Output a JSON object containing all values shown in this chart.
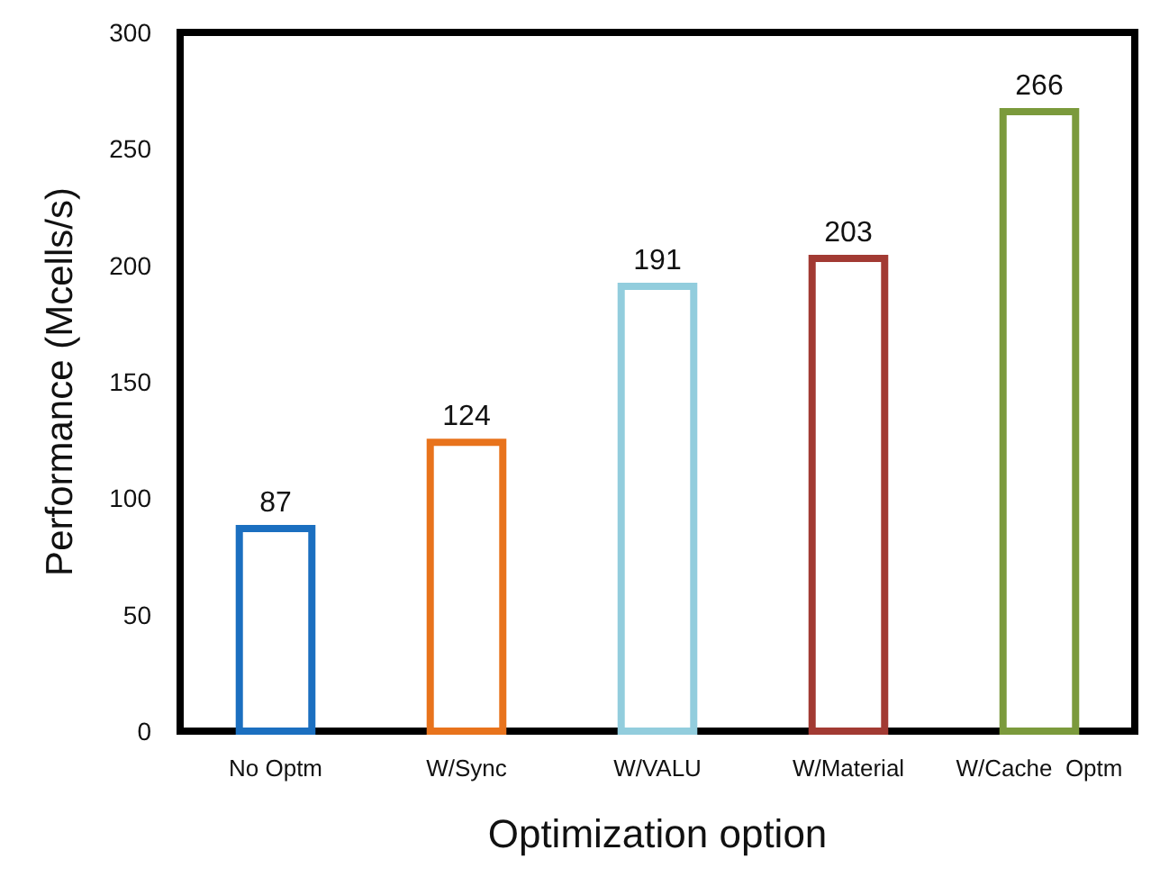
{
  "chart_data": {
    "type": "bar",
    "xlabel": "Optimization option",
    "ylabel": "Performance (Mcells/s)",
    "categories": [
      "No Optm",
      "W/Sync",
      "W/VALU",
      "W/Material",
      "W/Cache  Optm"
    ],
    "values": [
      87,
      124,
      191,
      203,
      266
    ],
    "colors": [
      "#1b6fc0",
      "#e8731c",
      "#92cddd",
      "#a23a33",
      "#7b9a3c"
    ],
    "ylim": [
      0,
      300
    ],
    "yticks": [
      0,
      50,
      100,
      150,
      200,
      250,
      300
    ],
    "data_labels": true,
    "grid": false
  }
}
